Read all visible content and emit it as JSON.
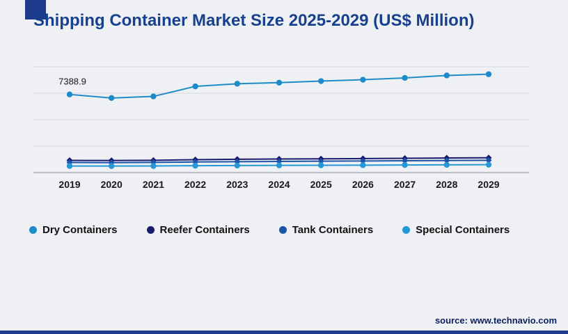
{
  "page": {
    "title": "Shipping Container Market Size 2025-2029 (US$ Million)",
    "accent_color": "#1c3b8d",
    "background_color": "#eef0f4"
  },
  "footer": {
    "source_text": "source: www.technavio.com"
  },
  "chart_data": {
    "type": "line",
    "title": "Shipping Container Market Size 2025-2029 (US$ Million)",
    "x": [
      "2019",
      "2020",
      "2021",
      "2022",
      "2023",
      "2024",
      "2025",
      "2026",
      "2027",
      "2028",
      "2029"
    ],
    "series": [
      {
        "name": "Dry Containers",
        "color": "#1e8bc9",
        "marker": "circle",
        "values": [
          7388.9,
          7050,
          7200,
          8150,
          8400,
          8500,
          8650,
          8780,
          8950,
          9180,
          9300
        ]
      },
      {
        "name": "Reefer Containers",
        "color": "#191970",
        "marker": "diamond",
        "values": [
          1150,
          1140,
          1160,
          1220,
          1255,
          1280,
          1300,
          1325,
          1350,
          1380,
          1400
        ]
      },
      {
        "name": "Tank Containers",
        "color": "#1c54a8",
        "marker": "diamond",
        "values": [
          950,
          940,
          960,
          1000,
          1030,
          1050,
          1075,
          1095,
          1115,
          1140,
          1160
        ]
      },
      {
        "name": "Special Containers",
        "color": "#2499d6",
        "marker": "circle",
        "values": [
          620,
          615,
          625,
          650,
          665,
          680,
          690,
          700,
          715,
          730,
          745
        ]
      }
    ],
    "ylim": [
      0,
      10000
    ],
    "gridlines": [
      2500,
      5000,
      7500,
      10000
    ],
    "grid": "horizontal",
    "legend_position": "bottom",
    "annotations": [
      {
        "series_index": 0,
        "point_index": 0,
        "text": "7388.9"
      }
    ]
  }
}
